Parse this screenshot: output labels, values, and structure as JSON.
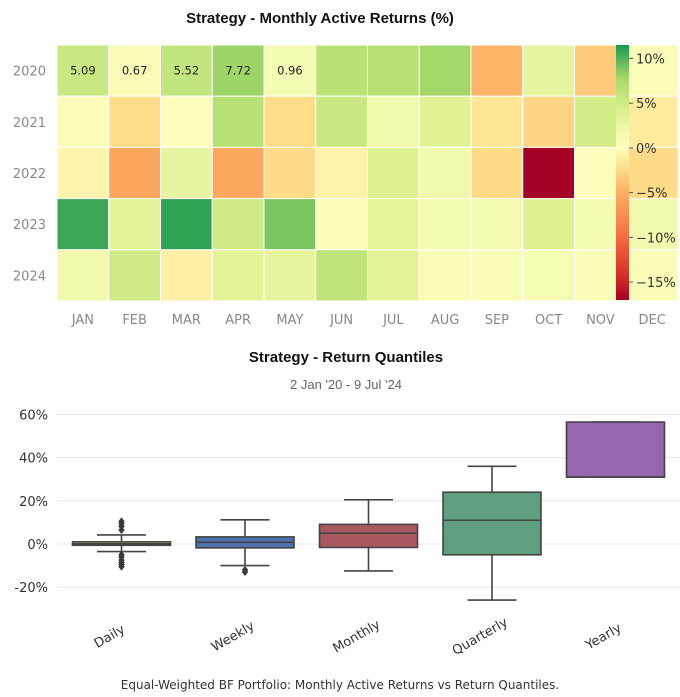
{
  "caption": "Equal-Weighted BF Portfolio: Monthly Active Returns vs Return Quantiles.",
  "chart_data": [
    {
      "type": "heatmap",
      "title": "Strategy - Monthly Active Returns (%)",
      "x_categories": [
        "JAN",
        "FEB",
        "MAR",
        "APR",
        "MAY",
        "JUN",
        "JUL",
        "AUG",
        "SEP",
        "OCT",
        "NOV",
        "DEC"
      ],
      "y_categories": [
        "2020",
        "2021",
        "2022",
        "2023",
        "2024"
      ],
      "values": [
        [
          5.09,
          0.67,
          5.52,
          7.72,
          0.96,
          6.2,
          6.3,
          7.6,
          -4.6,
          2.6,
          -3.3,
          0.6
        ],
        [
          0.5,
          -2.2,
          0.1,
          6.3,
          -2.2,
          5.1,
          1.5,
          3.3,
          -1.6,
          -2.6,
          4.4,
          -1.3
        ],
        [
          -0.7,
          -5.7,
          2.4,
          -5.4,
          -2.3,
          -0.8,
          3.6,
          1.5,
          -2.3,
          -17.0,
          0.2,
          -2.3
        ],
        [
          10.6,
          2.9,
          10.9,
          4.6,
          8.7,
          0.4,
          2.8,
          1.2,
          1.2,
          3.6,
          1.0,
          1.4
        ],
        [
          1.4,
          4.6,
          -1.0,
          3.0,
          2.6,
          5.8,
          2.9,
          0.7,
          0.7,
          0.8,
          0.7,
          0.7
        ]
      ],
      "annotated_cells": [
        [
          "5.09",
          "0.67",
          "5.52",
          "7.72",
          "0.96"
        ]
      ],
      "colorbar": {
        "range": [
          -17,
          11.5
        ],
        "ticks": [
          10,
          5,
          0,
          -5,
          -10,
          -15
        ],
        "tick_labels": [
          "10%",
          "5%",
          "0%",
          "−5%",
          "−10%",
          "−15%"
        ]
      },
      "colors": {
        "neg_strong": "#a50026",
        "neg": "#f46d43",
        "neutral": "#ffffbf",
        "pos": "#a6d96a",
        "pos_strong": "#1a9850"
      }
    },
    {
      "type": "box",
      "title": "Strategy - Return Quantiles",
      "subtitle": "2 Jan '20 -  9 Jul '24",
      "categories": [
        "Daily",
        "Weekly",
        "Monthly",
        "Quarterly",
        "Yearly"
      ],
      "ylim": [
        -29,
        64
      ],
      "y_ticks": [
        60,
        40,
        20,
        0,
        -20
      ],
      "y_tick_labels": [
        "60%",
        "40%",
        "20%",
        "0%",
        "-20%"
      ],
      "grid": true,
      "boxes": [
        {
          "name": "Daily",
          "color": "#c7c97a",
          "whisker_low": -3.5,
          "q1": -0.6,
          "median": 0.1,
          "q3": 1.0,
          "whisker_high": 4.2,
          "outliers": [
            10.5,
            9.5,
            8.2,
            6.5,
            -5.0,
            -6.0,
            -7.5,
            -8.5,
            -9.5,
            -10.5
          ]
        },
        {
          "name": "Weekly",
          "color": "#4c72b0",
          "whisker_low": -10.0,
          "q1": -1.8,
          "median": 0.8,
          "q3": 3.3,
          "whisker_high": 11.2,
          "outliers": [
            -12.0,
            -13.0
          ]
        },
        {
          "name": "Monthly",
          "color": "#a8585e",
          "whisker_low": -12.5,
          "q1": -1.6,
          "median": 5.0,
          "q3": 9.1,
          "whisker_high": 20.5,
          "outliers": []
        },
        {
          "name": "Quarterly",
          "color": "#5f9e7f",
          "whisker_low": -26.0,
          "q1": -5.0,
          "median": 11.0,
          "q3": 24.0,
          "whisker_high": 36.0,
          "outliers": []
        },
        {
          "name": "Yearly",
          "color": "#9467b0",
          "whisker_low": 31.0,
          "q1": 31.0,
          "median": 31.0,
          "q3": 56.5,
          "whisker_high": 56.5,
          "outliers": []
        }
      ]
    }
  ]
}
